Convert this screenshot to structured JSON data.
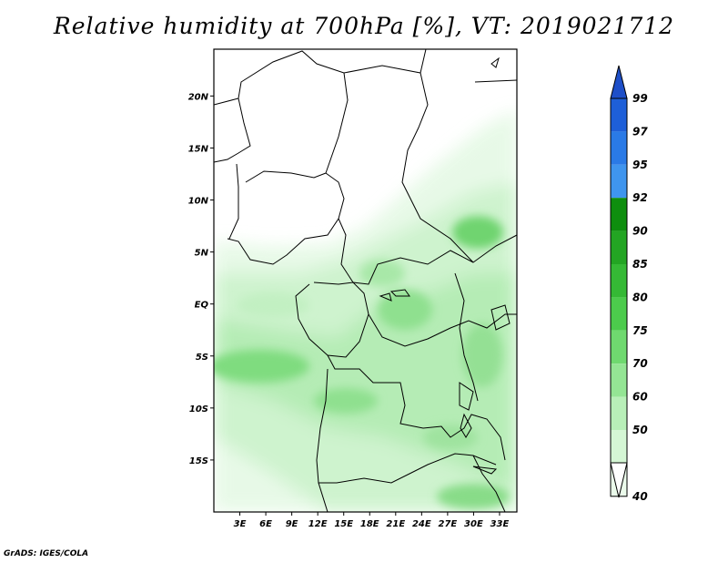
{
  "title": "Relative humidity at 700hPa [%], VT: 2019021712",
  "credit": "GrADS: IGES/COLA",
  "map": {
    "lat_ticks": [
      "20N",
      "15N",
      "10N",
      "5N",
      "EQ",
      "5S",
      "10S",
      "15S"
    ],
    "lon_ticks": [
      "3E",
      "6E",
      "9E",
      "12E",
      "15E",
      "18E",
      "21E",
      "24E",
      "27E",
      "30E",
      "33E"
    ],
    "lon_range": [
      0,
      35
    ],
    "lat_range": [
      -20,
      24.5
    ],
    "background_color": "#ffffff",
    "boundary_color": "#000000"
  },
  "colorbar": {
    "labels": [
      "99",
      "97",
      "95",
      "92",
      "90",
      "85",
      "80",
      "75",
      "70",
      "60",
      "50",
      "40"
    ],
    "colors": [
      "#1e5fd8",
      "#2a7ae6",
      "#3f95ee",
      "#0e8e0e",
      "#23a523",
      "#35b935",
      "#4ccb4c",
      "#6fd96f",
      "#94e594",
      "#b8efb8",
      "#d4f6d4",
      "#ebfbeb"
    ],
    "top_arrow_color": "#1e4fc8",
    "bottom_arrow_color": "#ffffff"
  },
  "icons": {
    "colorbar_top": "triangle-up-icon",
    "colorbar_bottom": "triangle-down-icon"
  }
}
